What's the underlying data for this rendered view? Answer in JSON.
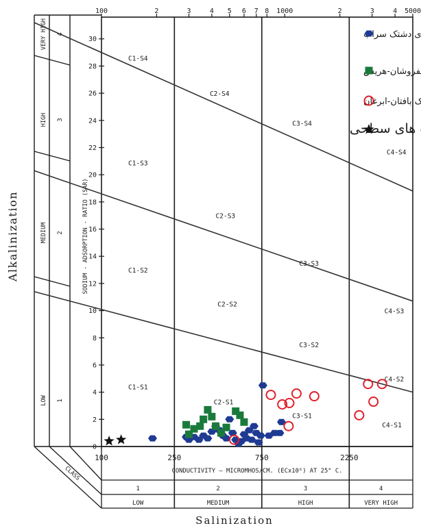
{
  "chart_data": {
    "type": "scatter",
    "title": "",
    "xlabel": "Salinization",
    "ylabel": "Alkalinization",
    "x_axis_label": "CONDUCTIVITY — MICROMHOS/CM. (ECx10⁶) AT 25° C.",
    "y_axis_label": "SODIUM - ADSORPTION - RATIO (SAR)",
    "x_scale": "log",
    "xlim": [
      100,
      5000
    ],
    "ylim": [
      0,
      31
    ],
    "x_top_ticks": [
      {
        "v": 100,
        "label": "100"
      },
      {
        "v": 200,
        "label": "2"
      },
      {
        "v": 300,
        "label": "3"
      },
      {
        "v": 400,
        "label": "4"
      },
      {
        "v": 500,
        "label": "5"
      },
      {
        "v": 600,
        "label": "6"
      },
      {
        "v": 700,
        "label": "7"
      },
      {
        "v": 800,
        "label": "8"
      },
      {
        "v": 1000,
        "label": "1000"
      },
      {
        "v": 2000,
        "label": "2"
      },
      {
        "v": 3000,
        "label": "3"
      },
      {
        "v": 4000,
        "label": "4"
      },
      {
        "v": 5000,
        "label": "5000"
      }
    ],
    "x_bottom_ticks": [
      {
        "v": 100,
        "label": "100"
      },
      {
        "v": 250,
        "label": "250"
      },
      {
        "v": 750,
        "label": "750"
      },
      {
        "v": 2250,
        "label": "2250"
      }
    ],
    "y_ticks": [
      0,
      2,
      4,
      6,
      8,
      10,
      12,
      14,
      16,
      18,
      20,
      22,
      24,
      26,
      28,
      30
    ],
    "salinity_classes": [
      {
        "num": "1",
        "name": "LOW"
      },
      {
        "num": "2",
        "name": "MEDIUM"
      },
      {
        "num": "3",
        "name": "HIGH"
      },
      {
        "num": "4",
        "name": "VERY HIGH"
      }
    ],
    "sodium_classes": [
      {
        "num": "1",
        "name": "LOW"
      },
      {
        "num": "2",
        "name": "MEDIUM"
      },
      {
        "num": "3",
        "name": "HIGH"
      },
      {
        "num": "4",
        "name": "VERY HIGH"
      }
    ],
    "class_caption": "CLASS",
    "zone_labels": [
      {
        "text": "C1-S4",
        "x": 140,
        "y": 28.4
      },
      {
        "text": "C2-S4",
        "x": 390,
        "y": 25.8
      },
      {
        "text": "C3-S4",
        "x": 1100,
        "y": 23.6
      },
      {
        "text": "C4-S4",
        "x": 3600,
        "y": 21.5
      },
      {
        "text": "C1-S3",
        "x": 140,
        "y": 20.7
      },
      {
        "text": "C2-S3",
        "x": 420,
        "y": 16.8
      },
      {
        "text": "C3-S3",
        "x": 1200,
        "y": 13.3
      },
      {
        "text": "C4-S3",
        "x": 3500,
        "y": 9.8
      },
      {
        "text": "C1-S2",
        "x": 140,
        "y": 12.8
      },
      {
        "text": "C2-S2",
        "x": 430,
        "y": 10.3
      },
      {
        "text": "C3-S2",
        "x": 1200,
        "y": 7.3
      },
      {
        "text": "C4-S2",
        "x": 3500,
        "y": 4.8
      },
      {
        "text": "C1-S1",
        "x": 140,
        "y": 4.2
      },
      {
        "text": "C2-S1",
        "x": 410,
        "y": 3.1
      },
      {
        "text": "C3-S1",
        "x": 1100,
        "y": 2.1
      },
      {
        "text": "C4-S1",
        "x": 3400,
        "y": 1.4
      }
    ],
    "boundary_lines": [
      [
        [
          100,
          31.6
        ],
        [
          5000,
          18.8
        ]
      ],
      [
        [
          100,
          20.7
        ],
        [
          5000,
          10.7
        ]
      ],
      [
        [
          100,
          11.8
        ],
        [
          5000,
          4.0
        ]
      ]
    ],
    "legend": {
      "position": "top-right",
      "entries": [
        {
          "label": "آبخوانهای دشتک سراب",
          "marker": "hexagon",
          "color": "#1f3a93"
        },
        {
          "label": "آبخوانهای دشتک اسپفروشان-هریس",
          "marker": "square",
          "color": "#1a7a3c"
        },
        {
          "label": "آبخوانهای دشتک بافتان-ابرغان",
          "marker": "open-circle",
          "color": "#e0202a"
        },
        {
          "label": "آب های سطحی",
          "marker": "star",
          "color": "#111111"
        }
      ]
    },
    "series": [
      {
        "marker": "hexagon",
        "color": "#1f3a93",
        "points": [
          [
            190,
            0.6
          ],
          [
            290,
            0.7
          ],
          [
            300,
            0.5
          ],
          [
            320,
            0.7
          ],
          [
            340,
            0.5
          ],
          [
            360,
            0.8
          ],
          [
            380,
            0.6
          ],
          [
            400,
            1.1
          ],
          [
            420,
            1.5
          ],
          [
            440,
            1.2
          ],
          [
            460,
            0.8
          ],
          [
            480,
            0.6
          ],
          [
            500,
            2.0
          ],
          [
            520,
            1.0
          ],
          [
            540,
            0.5
          ],
          [
            560,
            0.2
          ],
          [
            580,
            0.4
          ],
          [
            600,
            0.9
          ],
          [
            620,
            0.6
          ],
          [
            640,
            1.2
          ],
          [
            660,
            0.5
          ],
          [
            680,
            1.5
          ],
          [
            700,
            1.0
          ],
          [
            720,
            0.3
          ],
          [
            740,
            0.8
          ],
          [
            760,
            4.5
          ],
          [
            820,
            0.8
          ],
          [
            880,
            1.0
          ],
          [
            940,
            1.0
          ],
          [
            960,
            1.8
          ]
        ]
      },
      {
        "marker": "square",
        "color": "#1a7a3c",
        "points": [
          [
            290,
            1.6
          ],
          [
            300,
            0.9
          ],
          [
            320,
            1.3
          ],
          [
            345,
            1.5
          ],
          [
            360,
            2.0
          ],
          [
            380,
            2.7
          ],
          [
            400,
            2.2
          ],
          [
            420,
            1.5
          ],
          [
            450,
            1.0
          ],
          [
            480,
            1.4
          ],
          [
            540,
            2.6
          ],
          [
            570,
            2.3
          ],
          [
            600,
            1.8
          ]
        ]
      },
      {
        "marker": "open-circle",
        "color": "#e0202a",
        "points": [
          [
            530,
            0.5
          ],
          [
            840,
            3.8
          ],
          [
            970,
            3.1
          ],
          [
            1060,
            3.2
          ],
          [
            1050,
            1.5
          ],
          [
            1160,
            3.9
          ],
          [
            1450,
            3.7
          ],
          [
            2550,
            2.3
          ],
          [
            2850,
            4.6
          ],
          [
            3050,
            3.3
          ],
          [
            3400,
            4.6
          ]
        ]
      },
      {
        "marker": "star",
        "color": "#111111",
        "points": [
          [
            110,
            0.4
          ],
          [
            128,
            0.5
          ]
        ]
      }
    ]
  }
}
